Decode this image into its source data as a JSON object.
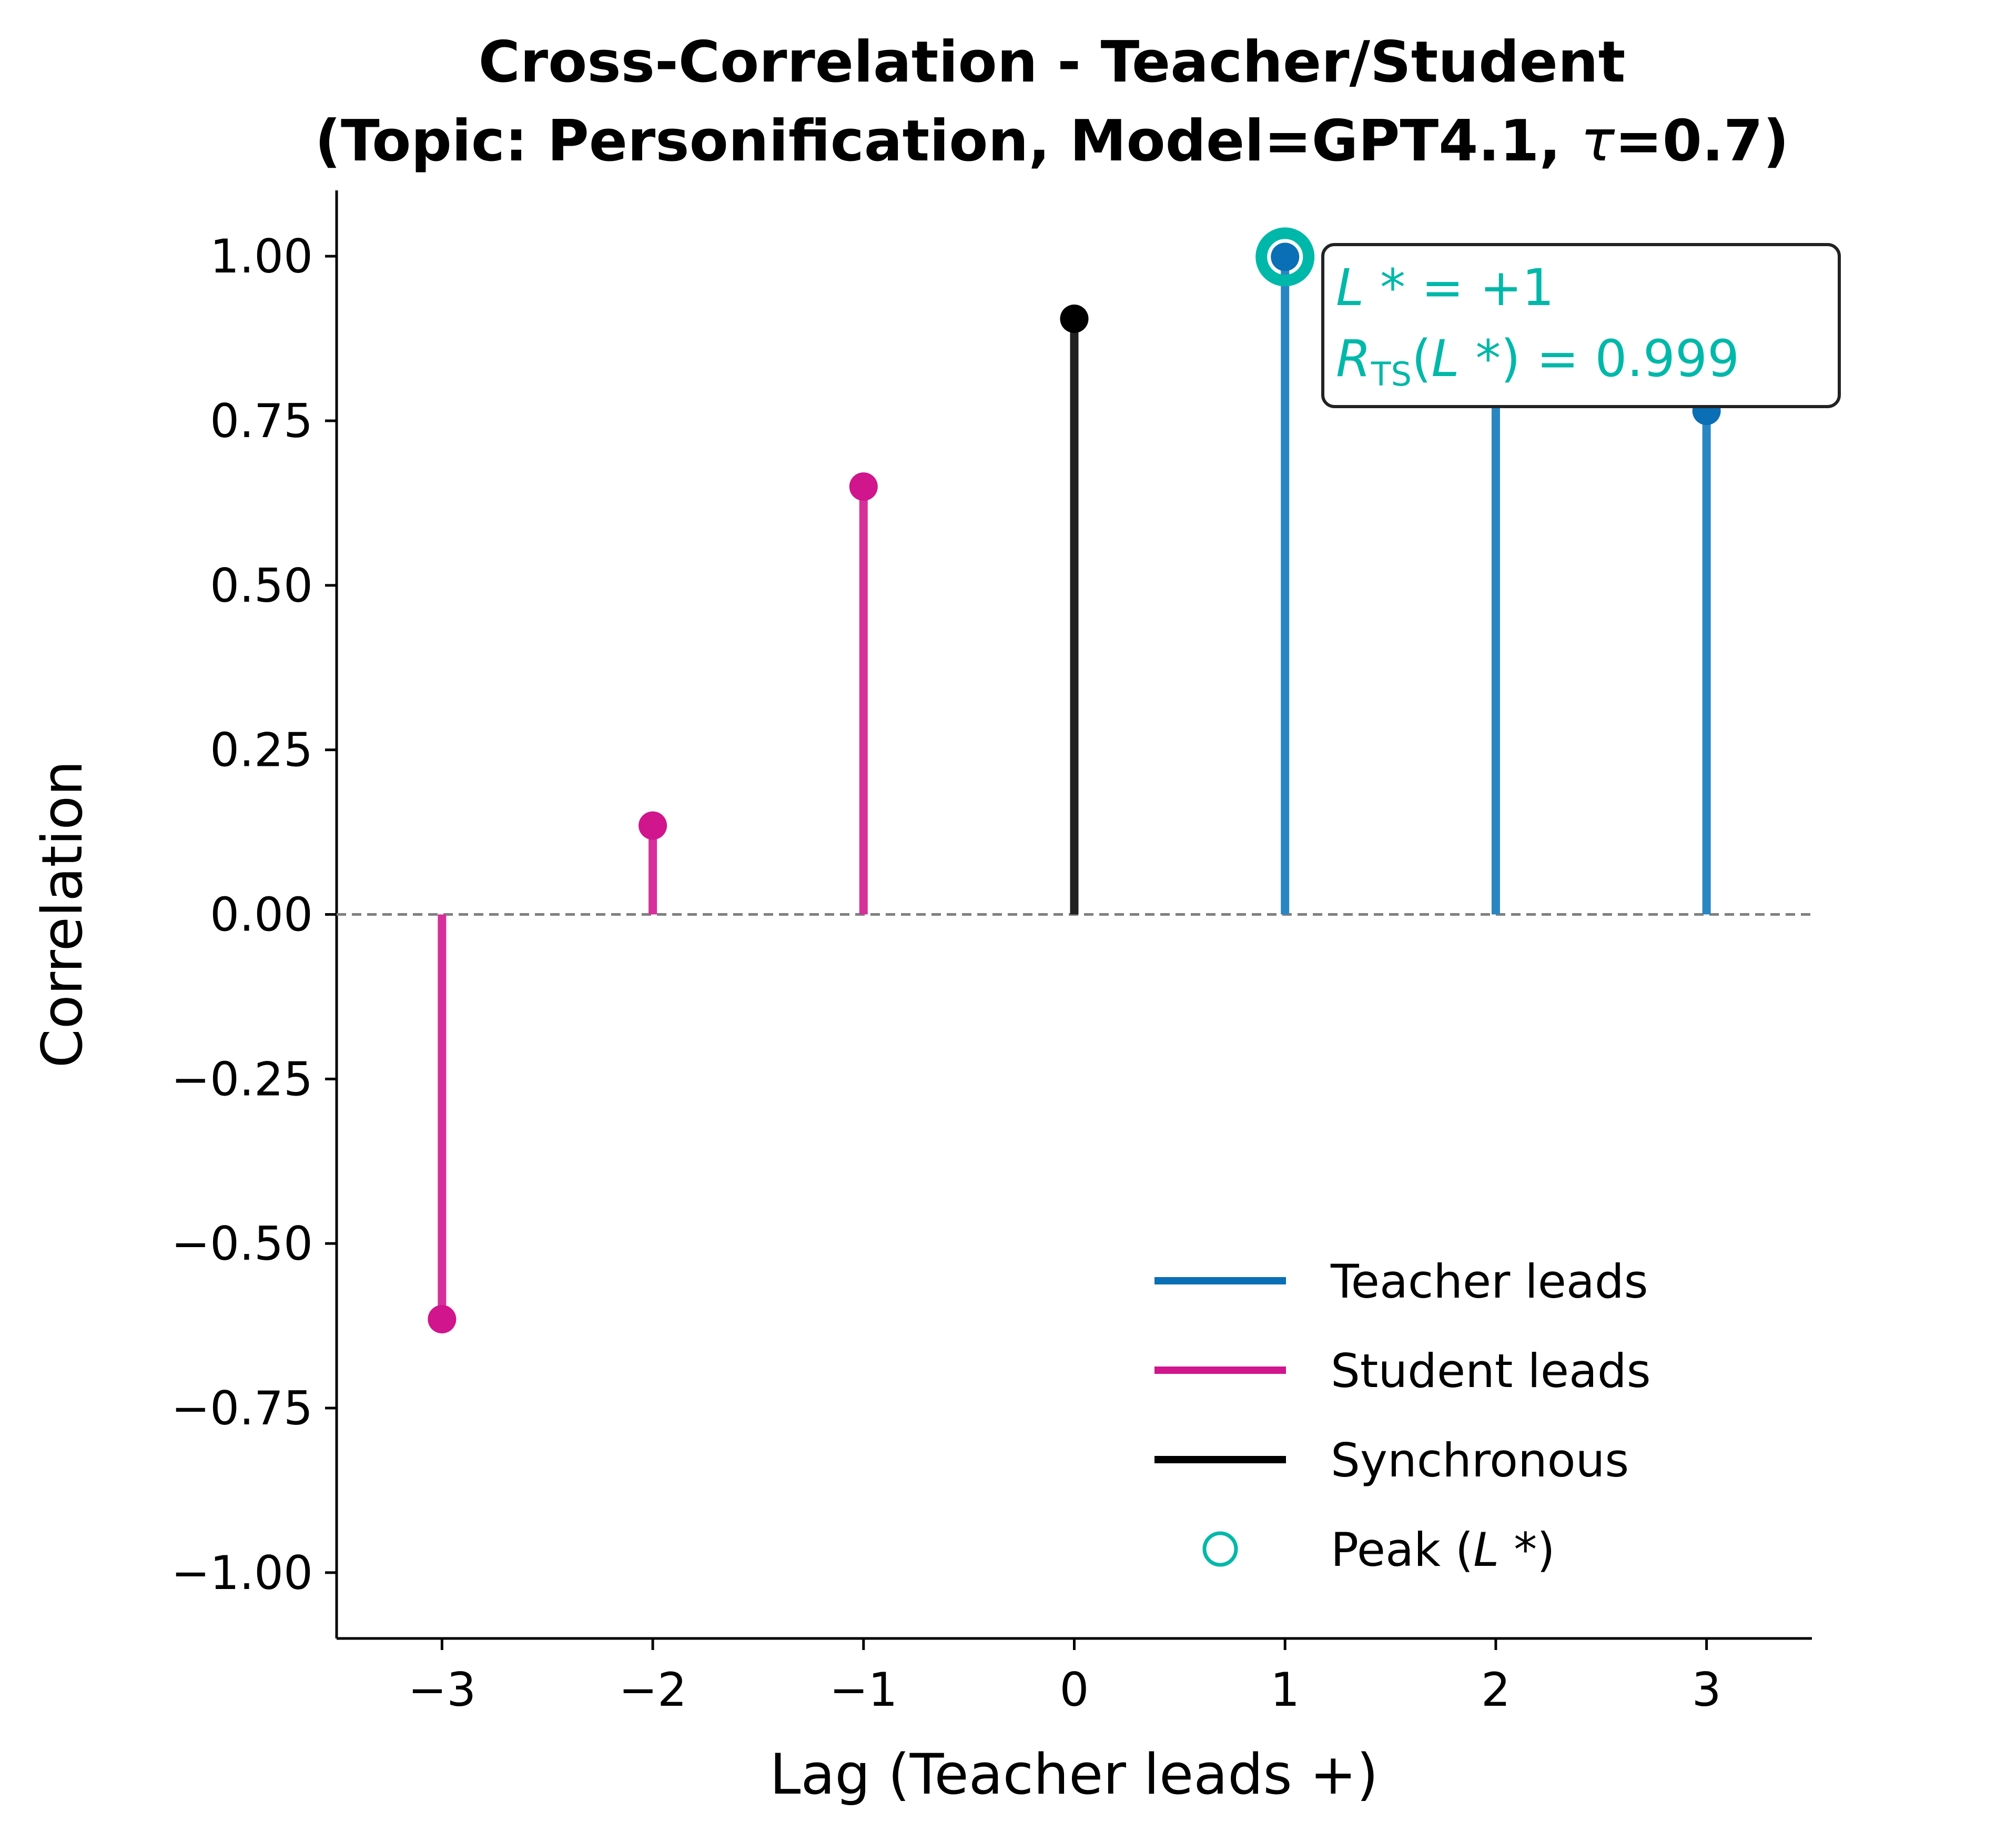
{
  "chart_data": {
    "type": "stem",
    "title_line1": "Cross-Correlation - Teacher/Student",
    "title_line2_prefix": "(Topic: Personification, Model=GPT4.1, ",
    "title_line2_tau": "τ",
    "title_line2_suffix": "=0.7)",
    "xlabel": "Lag (Teacher leads +)",
    "ylabel": "Correlation",
    "xlim": [
      -3.5,
      3.5
    ],
    "ylim": [
      -1.1,
      1.1
    ],
    "xticks": [
      -3,
      -2,
      -1,
      0,
      1,
      2,
      3
    ],
    "xtick_labels": [
      "−3",
      "−2",
      "−1",
      "0",
      "1",
      "2",
      "3"
    ],
    "yticks": [
      1.0,
      0.75,
      0.5,
      0.25,
      0.0,
      -0.25,
      -0.5,
      -0.75,
      -1.0
    ],
    "ytick_labels": [
      "1.00",
      "0.75",
      "0.50",
      "0.25",
      "0.00",
      "−0.25",
      "−0.50",
      "−0.75",
      "−1.00"
    ],
    "points": [
      {
        "lag": -3,
        "value": -0.615,
        "group": "student"
      },
      {
        "lag": -2,
        "value": 0.135,
        "group": "student"
      },
      {
        "lag": -1,
        "value": 0.65,
        "group": "student"
      },
      {
        "lag": 0,
        "value": 0.905,
        "group": "sync"
      },
      {
        "lag": 1,
        "value": 0.999,
        "group": "teacher"
      },
      {
        "lag": 2,
        "value": 0.885,
        "group": "teacher"
      },
      {
        "lag": 3,
        "value": 0.765,
        "group": "teacher"
      }
    ],
    "peak": {
      "lag": 1,
      "value": 0.999
    },
    "annotation": {
      "line1_var": "L",
      "line1_star": " *",
      "line1_rest": " = +1",
      "line2_var": "R",
      "line2_sub": "TS",
      "line2_open": "(",
      "line2_inner_var": "L",
      "line2_inner_star": " *",
      "line2_rest": ") = 0.999"
    },
    "zero_line": {
      "style": "dashed",
      "color": "#808080"
    },
    "grid": false,
    "legend": {
      "placement": "lower-right",
      "entries": [
        {
          "label": "Teacher leads",
          "kind": "line",
          "color": "#0a6fb5"
        },
        {
          "label": "Student leads",
          "kind": "line",
          "color": "#d0158d"
        },
        {
          "label": "Synchronous",
          "kind": "line",
          "color": "#000000"
        },
        {
          "label_prefix": "Peak (",
          "label_var": "L",
          "label_star": " *",
          "label_suffix": ")",
          "kind": "circle",
          "color": "#00b8a9"
        }
      ]
    },
    "colors": {
      "teacher_stem": "#2a86c3",
      "teacher_marker": "#0a6fb5",
      "student_stem": "#d6309b",
      "student_marker": "#d0158d",
      "sync_stem": "#222222",
      "sync_marker": "#000000",
      "peak": "#00b8a9",
      "annotation_text": "#00b8a9"
    }
  }
}
